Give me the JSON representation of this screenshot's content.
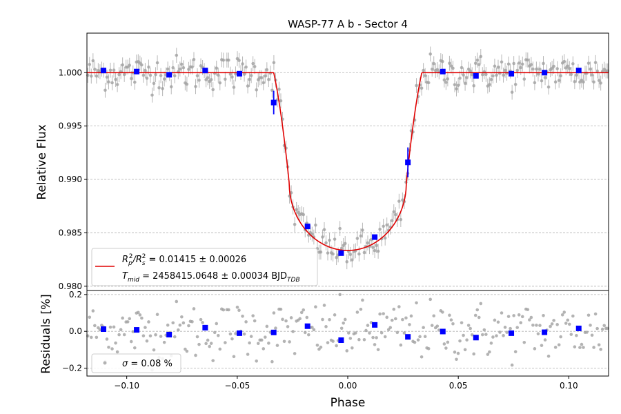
{
  "chart_data": [
    {
      "type": "scatter",
      "panel": "main",
      "title": "WASP-77 A b - Sector 4",
      "xlabel": "",
      "ylabel": "Relative Flux",
      "xlim": [
        -0.118,
        0.118
      ],
      "ylim": [
        0.9796,
        1.0037
      ],
      "yticks": [
        0.98,
        0.985,
        0.99,
        0.995,
        1.0
      ],
      "ytick_labels": [
        "0.980",
        "0.985",
        "0.990",
        "0.995",
        "1.000"
      ],
      "grid": "horizontal dashed",
      "legend_placement": "lower-left",
      "legend": {
        "line1_parts": [
          "R",
          "p",
          "2",
          "/R",
          "s",
          "2",
          " = 0.01415 ± 0.00026"
        ],
        "line2_parts": [
          "T",
          "mid",
          " = 2458415.0648 ± 0.00034 BJD",
          "TDB"
        ]
      },
      "model": {
        "name": "transit model",
        "color": "#e00000",
        "baseline": 1.0,
        "depth": 0.01665,
        "t1": 0.0335,
        "t2": 0.0265
      },
      "binned": {
        "color": "#0000ff",
        "x": [
          -0.1105,
          -0.0955,
          -0.0808,
          -0.0645,
          -0.049,
          -0.0335,
          -0.0182,
          -0.003,
          0.0122,
          0.0272,
          0.043,
          0.058,
          0.074,
          0.089,
          0.1045
        ],
        "y": [
          1.0002,
          1.0001,
          0.9998,
          1.0002,
          0.9999,
          0.9972,
          0.9856,
          0.9831,
          0.9846,
          0.9916,
          1.0001,
          0.9997,
          0.9999,
          1.0,
          1.0002
        ],
        "err": [
          0.0002,
          0.0002,
          0.0002,
          0.0002,
          0.0002,
          0.0011,
          0.0002,
          0.0002,
          0.0002,
          0.0014,
          0.0002,
          0.0002,
          0.0002,
          0.0002,
          0.0002
        ]
      },
      "raw": {
        "color": "#a0a0a0",
        "n_points": 300,
        "scatter": 0.0008,
        "err": 0.0007
      }
    },
    {
      "type": "scatter",
      "panel": "residuals",
      "xlabel": "Phase",
      "ylabel": "Residuals [%]",
      "xlim": [
        -0.118,
        0.118
      ],
      "ylim": [
        -0.243,
        0.222
      ],
      "xticks": [
        -0.1,
        -0.05,
        0.0,
        0.05,
        0.1
      ],
      "xtick_labels": [
        "−0.10",
        "−0.05",
        "0.00",
        "0.05",
        "0.10"
      ],
      "yticks": [
        -0.2,
        0.0,
        0.2
      ],
      "ytick_labels": [
        "−0.2",
        "0.0",
        "0.2"
      ],
      "grid": "horizontal dashed",
      "legend_placement": "lower-left",
      "legend": {
        "parts": [
          "σ",
          " = 0.08 %"
        ]
      },
      "binned": {
        "color": "#0000ff",
        "x": [
          -0.1105,
          -0.0955,
          -0.0808,
          -0.0645,
          -0.049,
          -0.0335,
          -0.0182,
          -0.003,
          0.0122,
          0.0272,
          0.043,
          0.058,
          0.074,
          0.089,
          0.1045
        ],
        "y": [
          0.012,
          0.008,
          -0.018,
          0.02,
          -0.01,
          -0.006,
          0.028,
          -0.048,
          0.035,
          -0.03,
          -0.001,
          -0.034,
          -0.01,
          -0.005,
          0.016
        ]
      },
      "raw": {
        "color": "#a0a0a0",
        "n_points": 300,
        "scatter": 0.08
      }
    }
  ]
}
